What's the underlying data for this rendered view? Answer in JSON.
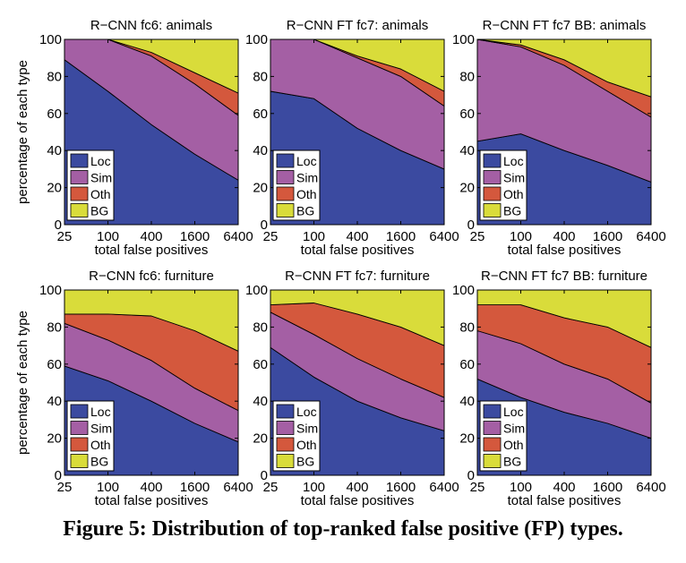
{
  "caption": "Figure 5: Distribution of top-ranked false positive (FP) types.",
  "colors": {
    "Loc": "#3b4aa0",
    "Sim": "#a45fa4",
    "Oth": "#d4583d",
    "BG": "#d9dc3a"
  },
  "chart_data": [
    {
      "type": "area",
      "stacked": true,
      "title": "R−CNN fc6: animals",
      "xlabel": "total false positives",
      "ylabel": "percentage of each type",
      "x": [
        25,
        100,
        400,
        1600,
        6400
      ],
      "x_scale": "log",
      "ylim": [
        0,
        100
      ],
      "x_tick_labels": [
        "25",
        "100",
        "400",
        "1600",
        "6400"
      ],
      "y_tick_labels": [
        "0",
        "20",
        "40",
        "60",
        "80",
        "100"
      ],
      "legend": [
        "Loc",
        "Sim",
        "Oth",
        "BG"
      ],
      "legend_position": "bottom-left",
      "series": [
        {
          "name": "Loc",
          "values": [
            89,
            72,
            54,
            38,
            24
          ]
        },
        {
          "name": "Sim",
          "values": [
            11,
            28,
            37,
            38,
            35
          ]
        },
        {
          "name": "Oth",
          "values": [
            0,
            0,
            2,
            6,
            12
          ]
        },
        {
          "name": "BG",
          "values": [
            0,
            0,
            7,
            18,
            29
          ]
        }
      ]
    },
    {
      "type": "area",
      "stacked": true,
      "title": "R−CNN FT fc7: animals",
      "xlabel": "total false positives",
      "ylabel": "",
      "x": [
        25,
        100,
        400,
        1600,
        6400
      ],
      "x_scale": "log",
      "ylim": [
        0,
        100
      ],
      "x_tick_labels": [
        "25",
        "100",
        "400",
        "1600",
        "6400"
      ],
      "y_tick_labels": [
        "0",
        "20",
        "40",
        "60",
        "80",
        "100"
      ],
      "legend": [
        "Loc",
        "Sim",
        "Oth",
        "BG"
      ],
      "legend_position": "bottom-left",
      "series": [
        {
          "name": "Loc",
          "values": [
            72,
            68,
            52,
            40,
            30
          ]
        },
        {
          "name": "Sim",
          "values": [
            28,
            32,
            38,
            40,
            34
          ]
        },
        {
          "name": "Oth",
          "values": [
            0,
            0,
            1,
            4,
            8
          ]
        },
        {
          "name": "BG",
          "values": [
            0,
            0,
            9,
            16,
            28
          ]
        }
      ]
    },
    {
      "type": "area",
      "stacked": true,
      "title": "R−CNN FT fc7 BB: animals",
      "xlabel": "total false positives",
      "ylabel": "",
      "x": [
        25,
        100,
        400,
        1600,
        6400
      ],
      "x_scale": "log",
      "ylim": [
        0,
        100
      ],
      "x_tick_labels": [
        "25",
        "100",
        "400",
        "1600",
        "6400"
      ],
      "y_tick_labels": [
        "0",
        "20",
        "40",
        "60",
        "80",
        "100"
      ],
      "legend": [
        "Loc",
        "Sim",
        "Oth",
        "BG"
      ],
      "legend_position": "bottom-left",
      "series": [
        {
          "name": "Loc",
          "values": [
            45,
            49,
            40,
            32,
            23
          ]
        },
        {
          "name": "Sim",
          "values": [
            55,
            47,
            46,
            40,
            35
          ]
        },
        {
          "name": "Oth",
          "values": [
            0,
            1,
            3,
            5,
            11
          ]
        },
        {
          "name": "BG",
          "values": [
            0,
            3,
            11,
            23,
            31
          ]
        }
      ]
    },
    {
      "type": "area",
      "stacked": true,
      "title": "R−CNN fc6: furniture",
      "xlabel": "total false positives",
      "ylabel": "percentage of each type",
      "x": [
        25,
        100,
        400,
        1600,
        6400
      ],
      "x_scale": "log",
      "ylim": [
        0,
        100
      ],
      "x_tick_labels": [
        "25",
        "100",
        "400",
        "1600",
        "6400"
      ],
      "y_tick_labels": [
        "0",
        "20",
        "40",
        "60",
        "80",
        "100"
      ],
      "legend": [
        "Loc",
        "Sim",
        "Oth",
        "BG"
      ],
      "legend_position": "bottom-left",
      "series": [
        {
          "name": "Loc",
          "values": [
            59,
            51,
            40,
            28,
            18
          ]
        },
        {
          "name": "Sim",
          "values": [
            23,
            22,
            22,
            19,
            17
          ]
        },
        {
          "name": "Oth",
          "values": [
            5,
            14,
            24,
            31,
            32
          ]
        },
        {
          "name": "BG",
          "values": [
            13,
            13,
            14,
            22,
            33
          ]
        }
      ]
    },
    {
      "type": "area",
      "stacked": true,
      "title": "R−CNN FT fc7: furniture",
      "xlabel": "total false positives",
      "ylabel": "",
      "x": [
        25,
        100,
        400,
        1600,
        6400
      ],
      "x_scale": "log",
      "ylim": [
        0,
        100
      ],
      "x_tick_labels": [
        "25",
        "100",
        "400",
        "1600",
        "6400"
      ],
      "y_tick_labels": [
        "0",
        "20",
        "40",
        "60",
        "80",
        "100"
      ],
      "legend": [
        "Loc",
        "Sim",
        "Oth",
        "BG"
      ],
      "legend_position": "bottom-left",
      "series": [
        {
          "name": "Loc",
          "values": [
            69,
            53,
            40,
            31,
            24
          ]
        },
        {
          "name": "Sim",
          "values": [
            19,
            23,
            23,
            21,
            18
          ]
        },
        {
          "name": "Oth",
          "values": [
            4,
            17,
            24,
            28,
            28
          ]
        },
        {
          "name": "BG",
          "values": [
            8,
            7,
            13,
            20,
            30
          ]
        }
      ]
    },
    {
      "type": "area",
      "stacked": true,
      "title": "R−CNN FT fc7 BB: furniture",
      "xlabel": "total false positives",
      "ylabel": "",
      "x": [
        25,
        100,
        400,
        1600,
        6400
      ],
      "x_scale": "log",
      "ylim": [
        0,
        100
      ],
      "x_tick_labels": [
        "25",
        "100",
        "400",
        "1600",
        "6400"
      ],
      "y_tick_labels": [
        "0",
        "20",
        "40",
        "60",
        "80",
        "100"
      ],
      "legend": [
        "Loc",
        "Sim",
        "Oth",
        "BG"
      ],
      "legend_position": "bottom-left",
      "series": [
        {
          "name": "Loc",
          "values": [
            52,
            42,
            34,
            28,
            20
          ]
        },
        {
          "name": "Sim",
          "values": [
            26,
            29,
            26,
            24,
            19
          ]
        },
        {
          "name": "Oth",
          "values": [
            14,
            21,
            25,
            28,
            30
          ]
        },
        {
          "name": "BG",
          "values": [
            8,
            8,
            15,
            20,
            31
          ]
        }
      ]
    }
  ]
}
